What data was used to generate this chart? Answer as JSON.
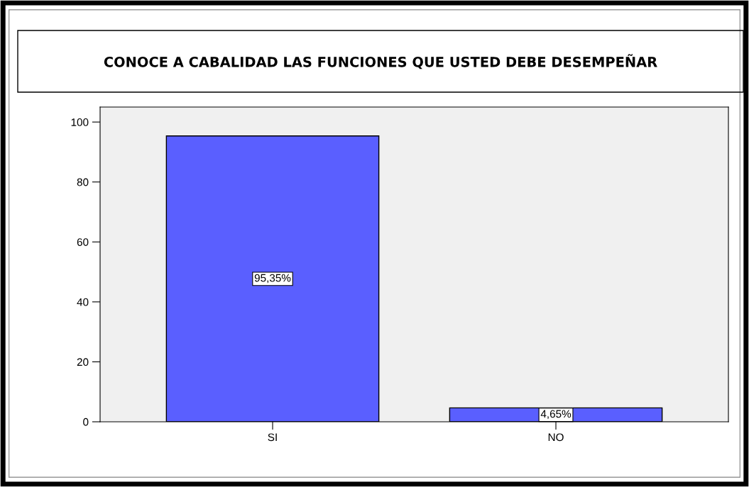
{
  "chart_data": {
    "type": "bar",
    "title": "CONOCE A CABALIDAD LAS FUNCIONES QUE USTED DEBE DESEMPEÑAR",
    "categories": [
      "SI",
      "NO"
    ],
    "values": [
      95.35,
      4.65
    ],
    "value_labels": [
      "95,35%",
      "4,65%"
    ],
    "color": "#5a5fff",
    "ylim": [
      0,
      105
    ],
    "yticks": [
      0,
      20,
      40,
      60,
      80,
      100
    ],
    "grid": false,
    "legend": false
  }
}
